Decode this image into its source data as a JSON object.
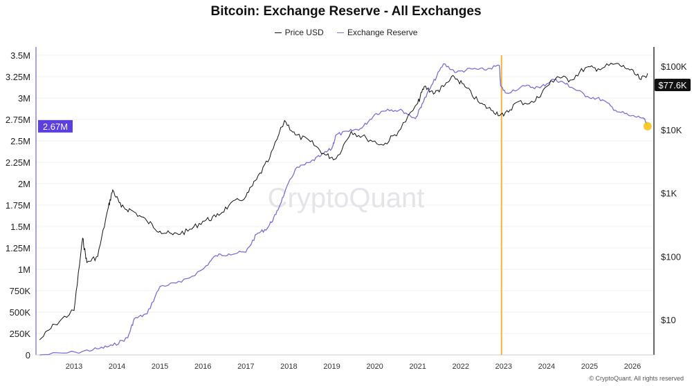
{
  "chart_data": {
    "type": "line",
    "title": "Bitcoin: Exchange Reserve - All Exchanges",
    "legend_position": "top",
    "grid": true,
    "watermark": "CryptoQuant",
    "footer": "© CryptoQuant. All rights reserved",
    "x_ticks": [
      "2013",
      "2014",
      "2015",
      "2016",
      "2017",
      "2018",
      "2019",
      "2020",
      "2021",
      "2022",
      "2023",
      "2024",
      "2025",
      "2026"
    ],
    "xlim": [
      2012.0,
      2026.5
    ],
    "y_left": {
      "ticks": [
        "0",
        "250K",
        "500K",
        "750K",
        "1M",
        "1.25M",
        "1.5M",
        "1.75M",
        "2M",
        "2.25M",
        "2.5M",
        "2.75M",
        "3M",
        "3.25M",
        "3.5M"
      ],
      "ylim": [
        0,
        3.5
      ],
      "unit": "M BTC"
    },
    "y_right": {
      "ticks": [
        "$10",
        "$100",
        "$1K",
        "$10K",
        "$100K"
      ],
      "scale": "log",
      "ylim": [
        3,
        130000
      ]
    },
    "colors": {
      "price": "#111111",
      "reserve": "#7b6fd6",
      "marker_line": "#e8b73a",
      "end_dot": "#f5c518",
      "reserve_badge": "#5b3fe0",
      "price_badge": "#111111"
    },
    "highlight_line_x": 2022.95,
    "badges": {
      "reserve": "2.67M",
      "price": "$77.6K"
    },
    "series": [
      {
        "name": "Price USD",
        "axis": "right",
        "x": [
          2012.2,
          2012.55,
          2013.0,
          2013.2,
          2013.3,
          2013.55,
          2013.8,
          2013.9,
          2014.1,
          2014.35,
          2014.7,
          2015.0,
          2015.3,
          2015.65,
          2016.0,
          2016.3,
          2016.6,
          2017.0,
          2017.25,
          2017.55,
          2017.9,
          2018.15,
          2018.5,
          2018.85,
          2019.1,
          2019.45,
          2019.8,
          2020.2,
          2020.55,
          2021.0,
          2021.15,
          2021.4,
          2021.6,
          2021.85,
          2022.1,
          2022.45,
          2022.75,
          2023.0,
          2023.3,
          2023.7,
          2024.0,
          2024.25,
          2024.55,
          2024.9,
          2025.2,
          2025.6,
          2025.9,
          2026.2,
          2026.35
        ],
        "y": [
          4.8,
          8.4,
          14,
          193,
          80,
          100,
          600,
          1120,
          600,
          530,
          360,
          250,
          220,
          250,
          360,
          420,
          630,
          880,
          1650,
          3500,
          14000,
          8300,
          6500,
          4000,
          3500,
          9400,
          7400,
          5700,
          9400,
          26000,
          48000,
          38000,
          48000,
          69000,
          48000,
          26000,
          20000,
          16500,
          27000,
          27000,
          48000,
          69000,
          61000,
          95000,
          92000,
          110000,
          92000,
          62000,
          77600
        ]
      },
      {
        "name": "Exchange Reserve",
        "axis": "left",
        "x": [
          2012.2,
          2013.05,
          2013.55,
          2013.9,
          2014.25,
          2014.4,
          2014.7,
          2015.0,
          2015.5,
          2016.0,
          2016.3,
          2016.6,
          2017.0,
          2017.25,
          2017.5,
          2017.7,
          2017.9,
          2018.15,
          2018.5,
          2018.75,
          2019.0,
          2019.1,
          2019.4,
          2019.7,
          2020.0,
          2020.3,
          2020.65,
          2020.95,
          2021.1,
          2021.35,
          2021.6,
          2021.9,
          2022.25,
          2022.55,
          2022.9,
          2022.93,
          2023.05,
          2023.5,
          2023.85,
          2024.15,
          2024.4,
          2024.6,
          2024.95,
          2025.3,
          2025.6,
          2025.95,
          2026.25,
          2026.35
        ],
        "y": [
          0,
          0.03,
          0.07,
          0.11,
          0.2,
          0.42,
          0.48,
          0.8,
          0.85,
          1.0,
          1.16,
          1.18,
          1.2,
          1.41,
          1.48,
          1.64,
          1.89,
          2.17,
          2.25,
          2.33,
          2.41,
          2.57,
          2.61,
          2.65,
          2.81,
          2.87,
          2.85,
          2.76,
          2.93,
          3.17,
          3.4,
          3.3,
          3.34,
          3.33,
          3.38,
          3.14,
          3.06,
          3.14,
          3.12,
          3.22,
          3.18,
          3.12,
          3.02,
          2.98,
          2.86,
          2.79,
          2.77,
          2.67
        ]
      }
    ]
  }
}
